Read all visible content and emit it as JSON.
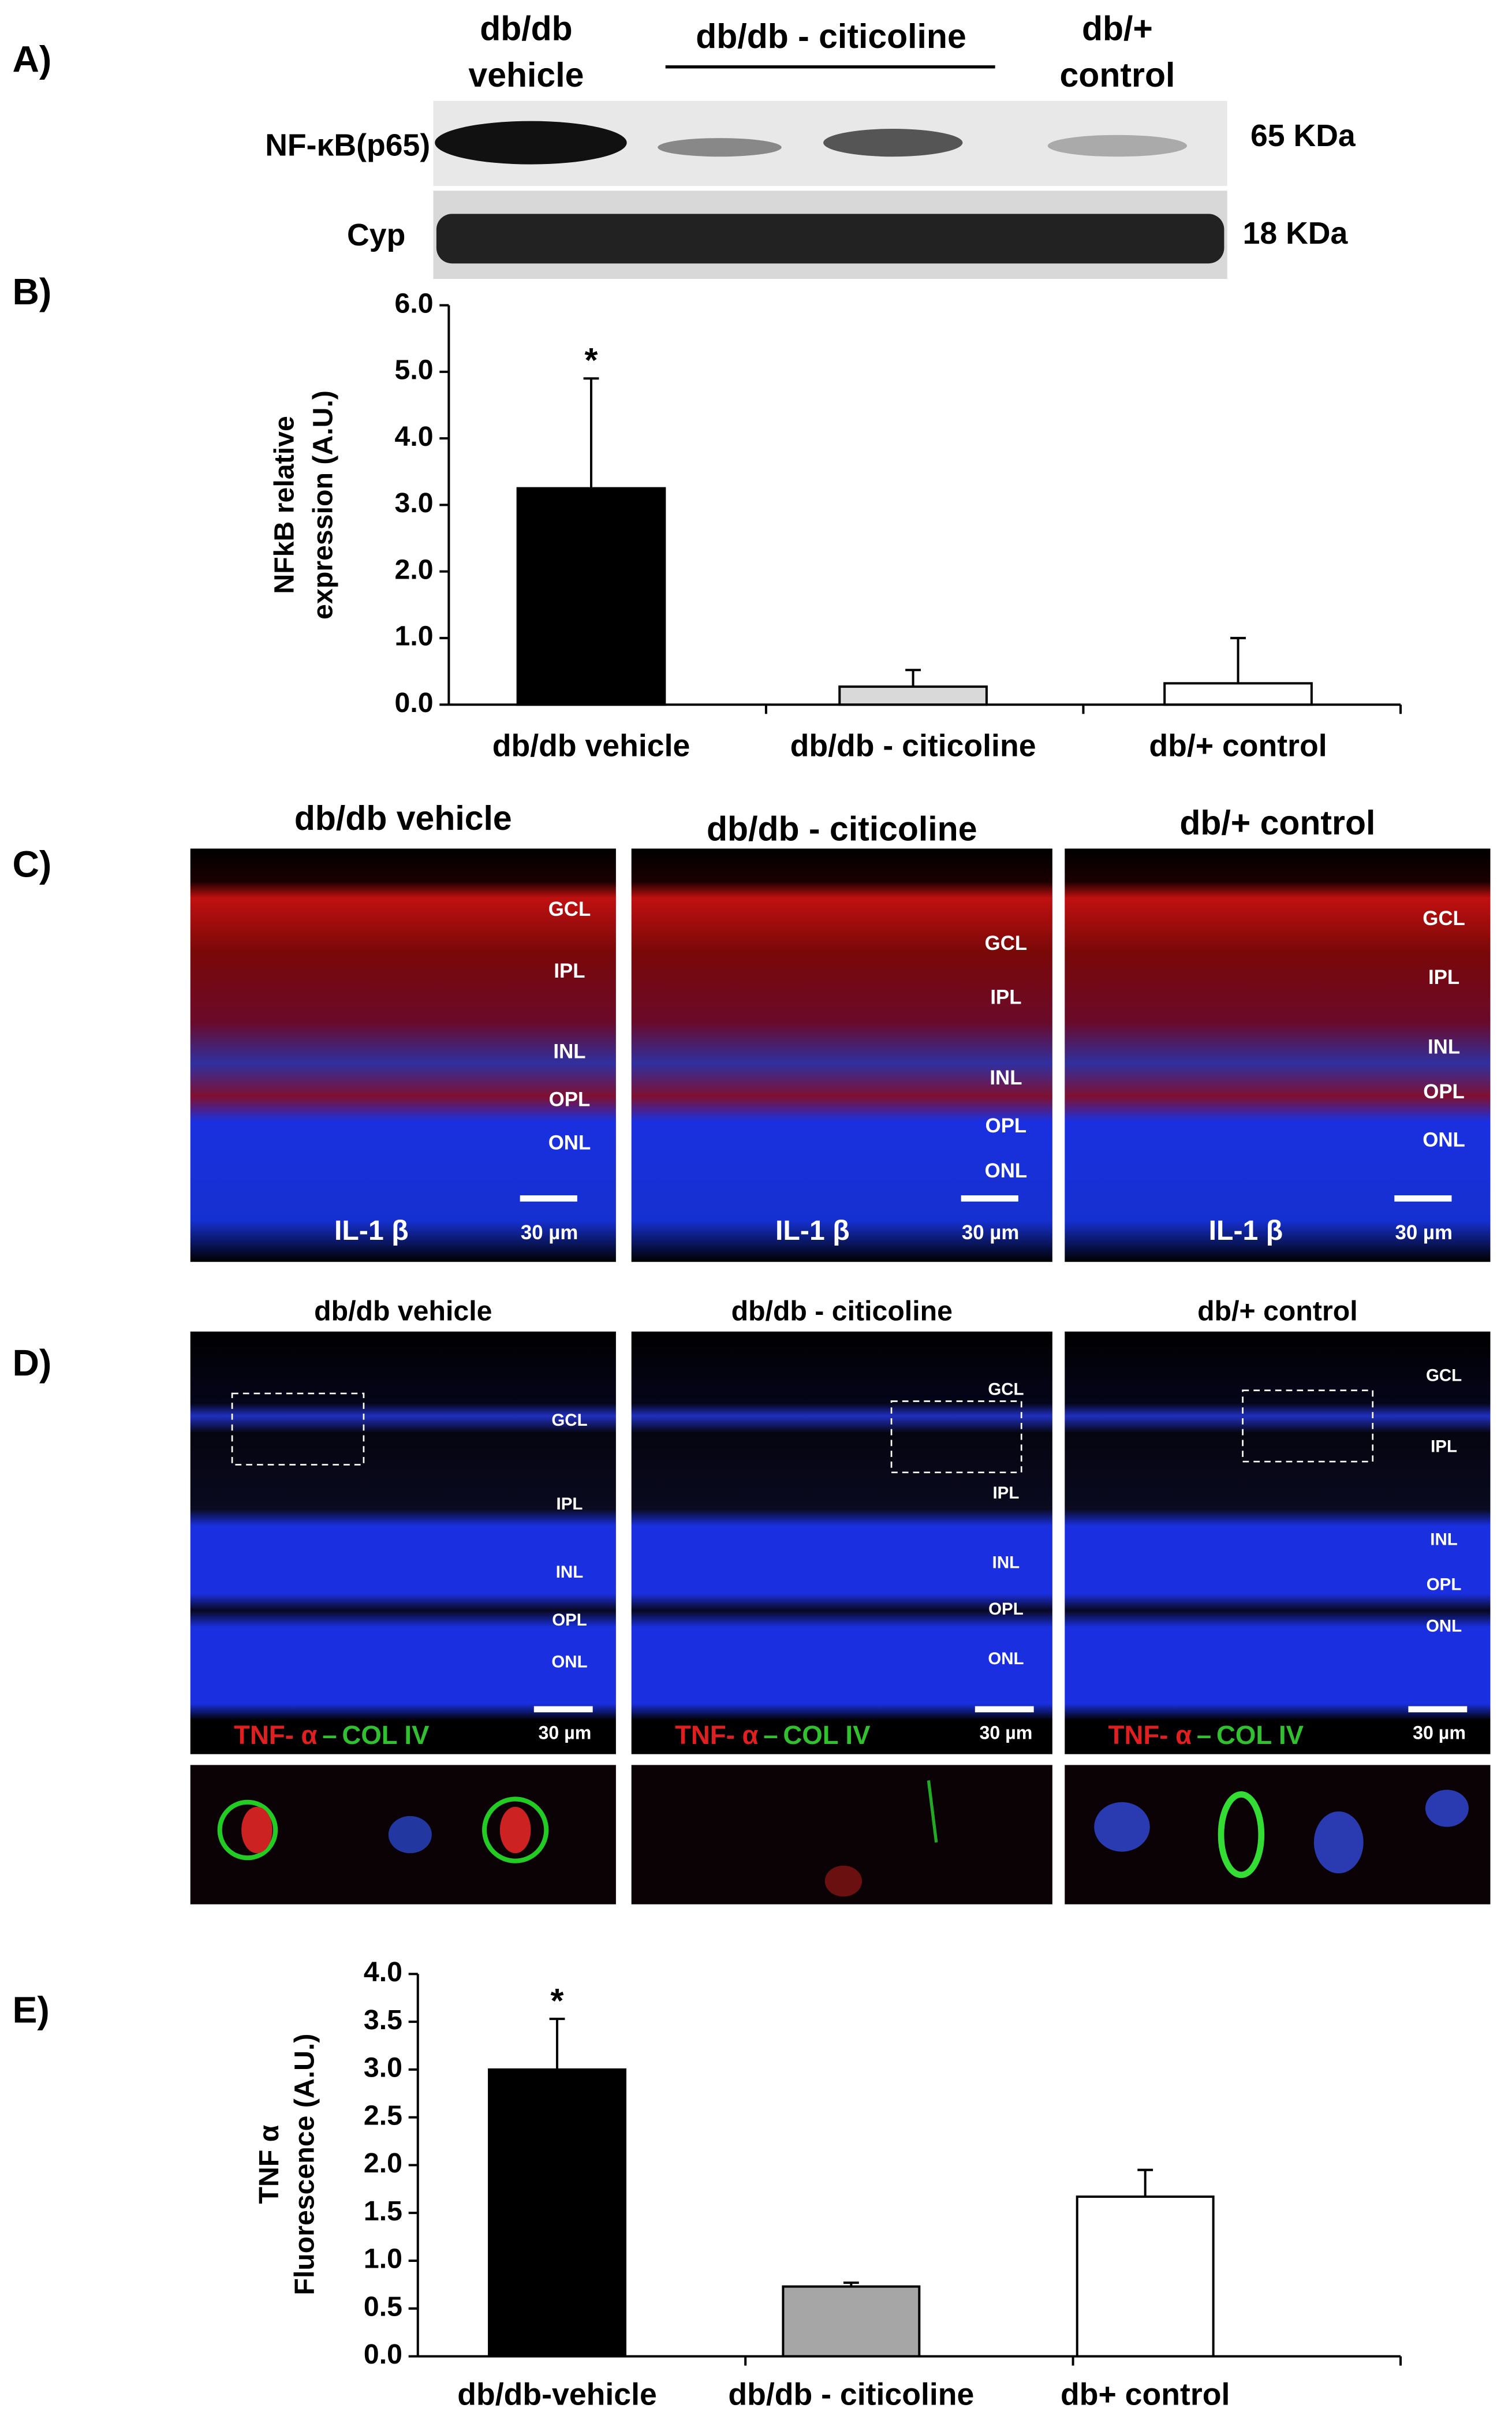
{
  "figure": {
    "panels": [
      "A)",
      "B)",
      "C)",
      "D)",
      "E)"
    ],
    "blot": {
      "groups": [
        [
          "db/db",
          "vehicle"
        ],
        [
          "db/db - citicoline"
        ],
        [
          "db/+",
          "control"
        ]
      ],
      "rows": [
        {
          "protein": "NF-κB(p65)",
          "size": "65 KDa"
        },
        {
          "protein": "Cyp",
          "size": "18 KDa"
        }
      ]
    },
    "il1b": {
      "titles": [
        "db/db vehicle",
        "db/db - citicoline",
        "db/+ control"
      ],
      "stain": "IL-1 β",
      "scale": "30 µm",
      "layers": [
        "GCL",
        "IPL",
        "INL",
        "OPL",
        "ONL"
      ]
    },
    "tnf": {
      "titles": [
        "db/db vehicle",
        "db/db - citicoline",
        "db/+ control"
      ],
      "stain_red": "TNF- α",
      "dash": "–",
      "stain_green": "COL IV",
      "scale": "30 µm",
      "layers": [
        "GCL",
        "IPL",
        "INL",
        "OPL",
        "ONL"
      ]
    }
  },
  "chart_data": [
    {
      "type": "bar",
      "ylabel": [
        "NFkB relative",
        "expression (A.U.)"
      ],
      "categories": [
        "db/db vehicle",
        "db/db - citicoline",
        "db/+ control"
      ],
      "values": [
        3.25,
        0.27,
        0.32
      ],
      "errors": [
        1.65,
        0.25,
        0.68
      ],
      "annotation": "*",
      "colors": [
        "#000000",
        "#d9d9d9",
        "#ffffff"
      ],
      "ylim": [
        0,
        6
      ],
      "yticks": [
        {
          "value": 0,
          "label": "0.0"
        },
        {
          "value": 1,
          "label": "1.0"
        },
        {
          "value": 2,
          "label": "2.0"
        },
        {
          "value": 3,
          "label": "3.0"
        },
        {
          "value": 4,
          "label": "4.0"
        },
        {
          "value": 5,
          "label": "5.0"
        },
        {
          "value": 6,
          "label": "6.0"
        }
      ]
    },
    {
      "type": "bar",
      "ylabel": [
        "TNF α",
        "Fluorescence (A.U.)"
      ],
      "categories": [
        "db/db-vehicle",
        "db/db - citicoline",
        "db+ control"
      ],
      "values": [
        3.0,
        0.73,
        1.67
      ],
      "errors": [
        0.53,
        0.04,
        0.28
      ],
      "annotation": "*",
      "colors": [
        "#000000",
        "#a6a6a6",
        "#ffffff"
      ],
      "ylim": [
        0,
        4
      ],
      "yticks": [
        {
          "value": 0,
          "label": "0.0"
        },
        {
          "value": 0.5,
          "label": "0.5"
        },
        {
          "value": 1,
          "label": "1.0"
        },
        {
          "value": 1.5,
          "label": "1.5"
        },
        {
          "value": 2,
          "label": "2.0"
        },
        {
          "value": 2.5,
          "label": "2.5"
        },
        {
          "value": 3,
          "label": "3.0"
        },
        {
          "value": 3.5,
          "label": "3.5"
        },
        {
          "value": 4,
          "label": "4.0"
        }
      ]
    }
  ]
}
